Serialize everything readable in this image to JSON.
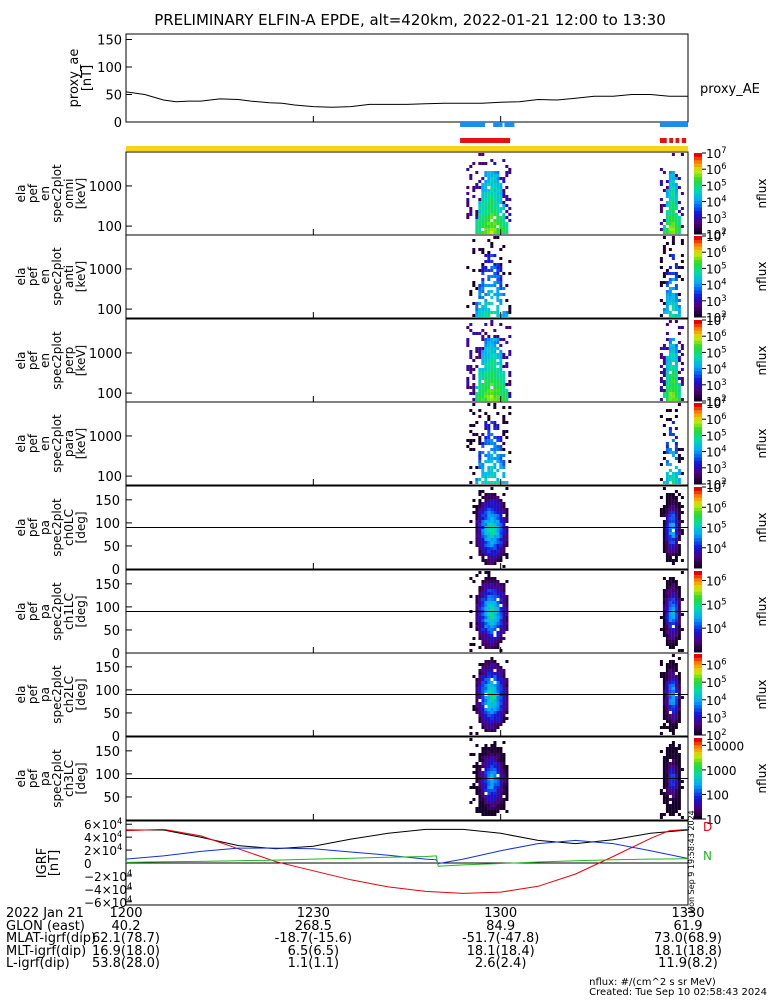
{
  "title": "PRELIMINARY ELFIN-A EPDE, alt=420km, 2022-01-21 12:00 to 13:30",
  "time_axis": {
    "start_min": 0,
    "end_min": 90,
    "ticks": [
      {
        "t": 0,
        "label": "1200"
      },
      {
        "t": 30,
        "label": "1230"
      },
      {
        "t": 60,
        "label": "1300"
      },
      {
        "t": 90,
        "label": "1330"
      }
    ]
  },
  "proxy_ae": {
    "ylabel": "proxy_ae\n[nT]",
    "legend": "proxy_AE",
    "yticks": [
      "0",
      "50",
      "100",
      "150"
    ]
  },
  "bars": {
    "science_zone_blue": [
      [
        53.5,
        57.5
      ],
      [
        58.8,
        60.3
      ],
      [
        60.6,
        62.2
      ],
      [
        85.5,
        90
      ]
    ],
    "science_zone_red": [
      [
        53.5,
        61.5
      ],
      [
        85.5,
        86.6
      ],
      [
        87.0,
        87.6
      ],
      [
        88.0,
        88.6
      ],
      [
        89.0,
        89.7
      ]
    ],
    "orbit_color": "#f5d31a"
  },
  "chart_data": [
    {
      "type": "line",
      "title": "proxy_ae",
      "ylabel": "proxy_ae [nT]",
      "ylim": [
        0,
        160
      ],
      "series": [
        {
          "name": "proxy_AE",
          "x": [
            0,
            3,
            6,
            8,
            10,
            12,
            15,
            18,
            20,
            23,
            25,
            27,
            30,
            33,
            36,
            39,
            42,
            45,
            48,
            51,
            54,
            57,
            60,
            63,
            66,
            69,
            72,
            75,
            78,
            81,
            84,
            87,
            90
          ],
          "y": [
            55,
            50,
            40,
            37,
            38,
            38,
            42,
            41,
            38,
            35,
            34,
            31,
            28,
            27,
            28,
            32,
            32,
            32,
            33,
            34,
            34,
            34,
            36,
            37,
            41,
            40,
            43,
            47,
            47,
            50,
            50,
            47,
            47
          ]
        }
      ]
    },
    {
      "type": "heatmap",
      "panel": "ela_pef_en_spec2plot_omni",
      "ylabel": "ela pef en spec2plot omni [keV]",
      "y_scale": "log",
      "yticks": [
        "100",
        "1000"
      ],
      "colorbar": {
        "label": "nflux",
        "range_exp": [
          2,
          7
        ],
        "ticks": [
          "10^2",
          "10^3",
          "10^4",
          "10^5",
          "10^6",
          "10^7"
        ]
      },
      "bursts": [
        {
          "t_start": 54.5,
          "t_end": 61.5
        },
        {
          "t_start": 85.5,
          "t_end": 89
        }
      ]
    },
    {
      "type": "heatmap",
      "panel": "ela_pef_en_spec2plot_anti",
      "ylabel": "ela pef en spec2plot anti [keV]",
      "y_scale": "log",
      "yticks": [
        "100",
        "1000"
      ],
      "colorbar": {
        "label": "nflux",
        "range_exp": [
          2,
          7
        ],
        "ticks": [
          "10^2",
          "10^3",
          "10^4",
          "10^5",
          "10^6",
          "10^7"
        ]
      },
      "bursts": [
        {
          "t_start": 54.5,
          "t_end": 61.5
        },
        {
          "t_start": 85.5,
          "t_end": 89
        }
      ]
    },
    {
      "type": "heatmap",
      "panel": "ela_pef_en_spec2plot_perp",
      "ylabel": "ela pef en spec2plot perp [keV]",
      "y_scale": "log",
      "yticks": [
        "100",
        "1000"
      ],
      "colorbar": {
        "label": "nflux",
        "range_exp": [
          2,
          7
        ],
        "ticks": [
          "10^2",
          "10^3",
          "10^4",
          "10^5",
          "10^6",
          "10^7"
        ]
      },
      "bursts": [
        {
          "t_start": 54.5,
          "t_end": 61.5
        },
        {
          "t_start": 85.5,
          "t_end": 89
        }
      ]
    },
    {
      "type": "heatmap",
      "panel": "ela_pef_en_spec2plot_para",
      "ylabel": "ela pef en spec2plot para [keV]",
      "y_scale": "log",
      "yticks": [
        "100",
        "1000"
      ],
      "colorbar": {
        "label": "nflux",
        "range_exp": [
          2,
          7
        ],
        "ticks": [
          "10^2",
          "10^3",
          "10^4",
          "10^5",
          "10^6",
          "10^7"
        ]
      },
      "bursts": [
        {
          "t_start": 54.5,
          "t_end": 61.5
        },
        {
          "t_start": 85.5,
          "t_end": 89
        }
      ]
    },
    {
      "type": "heatmap",
      "panel": "ela_pef_pa_spec2plot_ch0LC",
      "ylabel": "ela pef pa spec2plot ch0LC [deg]",
      "ylim": [
        0,
        180
      ],
      "yticks": [
        "0",
        "50",
        "100",
        "150"
      ],
      "colorbar": {
        "label": "nflux",
        "range_exp": [
          3,
          7
        ],
        "ticks": [
          "10^4",
          "10^5",
          "10^6",
          "10^7"
        ]
      },
      "bursts": [
        {
          "t_start": 55,
          "t_end": 61
        },
        {
          "t_start": 85.5,
          "t_end": 89
        }
      ]
    },
    {
      "type": "heatmap",
      "panel": "ela_pef_pa_spec2plot_ch1LC",
      "ylabel": "ela pef pa spec2plot ch1LC [deg]",
      "ylim": [
        0,
        180
      ],
      "yticks": [
        "0",
        "50",
        "100",
        "150"
      ],
      "colorbar": {
        "label": "nflux",
        "range_exp": [
          3,
          6.4
        ],
        "ticks": [
          "10^4",
          "10^5",
          "10^6"
        ]
      },
      "bursts": [
        {
          "t_start": 55,
          "t_end": 61
        },
        {
          "t_start": 85.5,
          "t_end": 89
        }
      ]
    },
    {
      "type": "heatmap",
      "panel": "ela_pef_pa_spec2plot_ch2LC",
      "ylabel": "ela pef pa spec2plot ch2LC [deg]",
      "ylim": [
        0,
        180
      ],
      "yticks": [
        "0",
        "50",
        "100",
        "150"
      ],
      "colorbar": {
        "label": "nflux",
        "range_exp": [
          2,
          6.6
        ],
        "ticks": [
          "10^2",
          "10^3",
          "10^4",
          "10^5",
          "10^6"
        ]
      },
      "bursts": [
        {
          "t_start": 55,
          "t_end": 61
        },
        {
          "t_start": 85.5,
          "t_end": 89
        }
      ]
    },
    {
      "type": "heatmap",
      "panel": "ela_pef_pa_spec2plot_ch3LC",
      "ylabel": "ela pef pa spec2plot ch3LC [deg]",
      "ylim": [
        0,
        180
      ],
      "yticks": [
        "50",
        "100",
        "150"
      ],
      "colorbar": {
        "label": "nflux",
        "range_exp": [
          1,
          4.3
        ],
        "ticks": [
          "10",
          "100",
          "1000",
          "10000"
        ]
      },
      "bursts": [
        {
          "t_start": 55,
          "t_end": 61
        },
        {
          "t_start": 85.5,
          "t_end": 89
        }
      ]
    },
    {
      "type": "line",
      "panel": "IGRF",
      "ylabel": "IGRF [nT]",
      "ylim": [
        -65000,
        65000
      ],
      "yticks": [
        "6×10^4",
        "4×10^4",
        "2×10^4",
        "0",
        "−2×10^4",
        "−4×10^4",
        "−6×10^4"
      ],
      "legend": [
        "D",
        "N"
      ],
      "series": [
        {
          "color": "#000000",
          "x": [
            0,
            6,
            12,
            18,
            24,
            30,
            36,
            42,
            48,
            54,
            60,
            66,
            72,
            78,
            84,
            90
          ],
          "y": [
            51000,
            51000,
            40000,
            27000,
            22000,
            26000,
            37000,
            46000,
            52000,
            52000,
            46000,
            35000,
            30000,
            36000,
            46000,
            51000
          ]
        },
        {
          "color": "#e8000b",
          "x": [
            0,
            6,
            12,
            18,
            24,
            30,
            36,
            42,
            48,
            54,
            60,
            66,
            72,
            78,
            84,
            87,
            90
          ],
          "y": [
            50000,
            52000,
            42000,
            22000,
            2000,
            -12000,
            -26000,
            -37000,
            -44000,
            -47000,
            -45000,
            -36000,
            -17000,
            10000,
            38000,
            50000,
            52000
          ]
        },
        {
          "color": "#1230d8",
          "x": [
            0,
            6,
            12,
            18,
            24,
            30,
            36,
            42,
            48,
            49.7,
            50,
            54,
            60,
            66,
            72,
            78,
            84,
            90
          ],
          "y": [
            6000,
            11000,
            18000,
            23000,
            23000,
            22000,
            17000,
            12000,
            6000,
            5000,
            -1000,
            6000,
            19000,
            30000,
            35000,
            30000,
            19000,
            7000
          ]
        },
        {
          "color": "#1fb81f",
          "x": [
            0,
            6,
            12,
            18,
            24,
            30,
            36,
            42,
            48,
            49.7,
            50,
            54,
            60,
            66,
            72,
            78,
            84,
            90
          ],
          "y": [
            1000,
            1800,
            2500,
            3500,
            4500,
            6000,
            7500,
            9000,
            10000,
            11000,
            -5000,
            -3000,
            -800,
            1500,
            3500,
            5000,
            6000,
            6500
          ]
        }
      ]
    }
  ],
  "ephemeris": {
    "rows": [
      {
        "label": "2022 Jan 21",
        "values": [
          "1200",
          "1230",
          "1300",
          "1330"
        ]
      },
      {
        "label": "GLON (east)",
        "values": [
          "40.2",
          "268.5",
          "84.9",
          "61.9"
        ]
      },
      {
        "label": "MLAT-igrf(dip)",
        "values": [
          "62.1(78.7)",
          "-18.7(-15.6)",
          "-51.7(-47.8)",
          "73.0(68.9)"
        ]
      },
      {
        "label": "MLT-igrf(dip)",
        "values": [
          "16.9(18.0)",
          "6.5(6.5)",
          "18.1(18.4)",
          "18.1(18.8)"
        ]
      },
      {
        "label": "L-igrf(dip)",
        "values": [
          "53.8(28.0)",
          "1.1(1.1)",
          "2.6(2.4)",
          "11.9(8.2)"
        ]
      }
    ]
  },
  "side_stamp": "Mon Sep 9 19:58:43 2024",
  "footer": {
    "units": "nflux: #/(cm^2 s sr MeV)",
    "created": "Created: Tue Sep 10 02:58:43 2024"
  }
}
